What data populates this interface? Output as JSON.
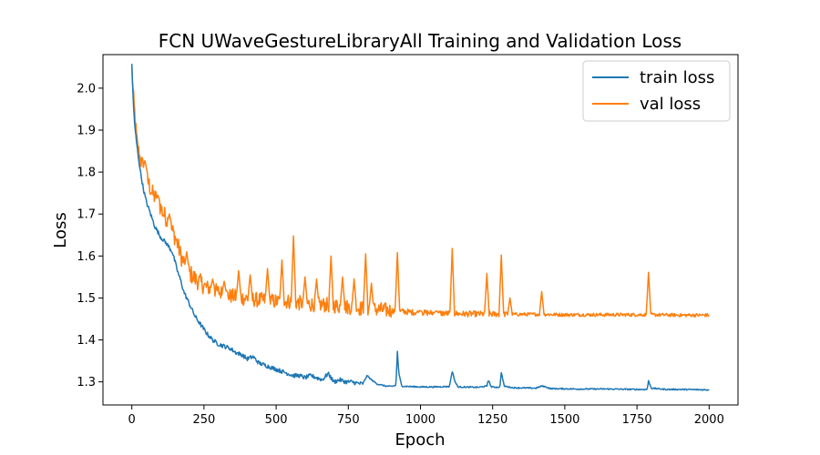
{
  "chart_data": {
    "type": "line",
    "title": "FCN UWaveGestureLibraryAll Training and Validation Loss",
    "xlabel": "Epoch",
    "ylabel": "Loss",
    "xlim": [
      -100,
      2100
    ],
    "ylim": [
      1.245,
      2.08
    ],
    "xticks": [
      0,
      250,
      500,
      750,
      1000,
      1250,
      1500,
      1750,
      2000
    ],
    "yticks": [
      1.3,
      1.4,
      1.5,
      1.6,
      1.7,
      1.8,
      1.9,
      2.0
    ],
    "ytick_labels": [
      "1.3",
      "1.4",
      "1.5",
      "1.6",
      "1.7",
      "1.8",
      "1.9",
      "2.0"
    ],
    "grid": false,
    "legend_position": "top-right",
    "colors": {
      "train": "#1f77b4",
      "val": "#ff7f0e"
    },
    "series": [
      {
        "name": "train loss",
        "color": "#1f77b4",
        "points": [
          [
            0,
            2.055
          ],
          [
            5,
            1.97
          ],
          [
            10,
            1.91
          ],
          [
            20,
            1.85
          ],
          [
            30,
            1.8
          ],
          [
            40,
            1.76
          ],
          [
            50,
            1.73
          ],
          [
            60,
            1.71
          ],
          [
            70,
            1.69
          ],
          [
            80,
            1.67
          ],
          [
            100,
            1.645
          ],
          [
            120,
            1.63
          ],
          [
            140,
            1.61
          ],
          [
            150,
            1.585
          ],
          [
            160,
            1.56
          ],
          [
            170,
            1.54
          ],
          [
            180,
            1.515
          ],
          [
            190,
            1.5
          ],
          [
            200,
            1.485
          ],
          [
            210,
            1.47
          ],
          [
            220,
            1.455
          ],
          [
            240,
            1.435
          ],
          [
            260,
            1.415
          ],
          [
            280,
            1.4
          ],
          [
            300,
            1.39
          ],
          [
            320,
            1.385
          ],
          [
            340,
            1.38
          ],
          [
            360,
            1.37
          ],
          [
            380,
            1.365
          ],
          [
            400,
            1.355
          ],
          [
            420,
            1.36
          ],
          [
            440,
            1.345
          ],
          [
            460,
            1.34
          ],
          [
            480,
            1.335
          ],
          [
            500,
            1.33
          ],
          [
            520,
            1.325
          ],
          [
            540,
            1.32
          ],
          [
            560,
            1.315
          ],
          [
            580,
            1.315
          ],
          [
            600,
            1.31
          ],
          [
            620,
            1.315
          ],
          [
            640,
            1.31
          ],
          [
            660,
            1.305
          ],
          [
            680,
            1.32
          ],
          [
            700,
            1.3
          ],
          [
            720,
            1.305
          ],
          [
            740,
            1.3
          ],
          [
            760,
            1.3
          ],
          [
            780,
            1.297
          ],
          [
            800,
            1.295
          ],
          [
            815,
            1.315
          ],
          [
            830,
            1.305
          ],
          [
            850,
            1.295
          ],
          [
            880,
            1.29
          ],
          [
            900,
            1.289
          ],
          [
            915,
            1.292
          ],
          [
            920,
            1.373
          ],
          [
            925,
            1.32
          ],
          [
            935,
            1.29
          ],
          [
            960,
            1.289
          ],
          [
            1000,
            1.288
          ],
          [
            1050,
            1.288
          ],
          [
            1100,
            1.289
          ],
          [
            1110,
            1.325
          ],
          [
            1120,
            1.3
          ],
          [
            1130,
            1.288
          ],
          [
            1200,
            1.287
          ],
          [
            1230,
            1.29
          ],
          [
            1235,
            1.305
          ],
          [
            1245,
            1.288
          ],
          [
            1275,
            1.287
          ],
          [
            1280,
            1.323
          ],
          [
            1290,
            1.29
          ],
          [
            1320,
            1.286
          ],
          [
            1400,
            1.285
          ],
          [
            1420,
            1.29
          ],
          [
            1430,
            1.289
          ],
          [
            1450,
            1.284
          ],
          [
            1550,
            1.283
          ],
          [
            1650,
            1.283
          ],
          [
            1750,
            1.282
          ],
          [
            1785,
            1.282
          ],
          [
            1790,
            1.302
          ],
          [
            1800,
            1.285
          ],
          [
            1850,
            1.282
          ],
          [
            1900,
            1.282
          ],
          [
            2000,
            1.281
          ]
        ]
      },
      {
        "name": "val loss",
        "color": "#ff7f0e",
        "points": [
          [
            0,
            2.05
          ],
          [
            5,
            1.98
          ],
          [
            10,
            1.94
          ],
          [
            15,
            1.89
          ],
          [
            20,
            1.86
          ],
          [
            30,
            1.83
          ],
          [
            40,
            1.81
          ],
          [
            50,
            1.79
          ],
          [
            60,
            1.77
          ],
          [
            70,
            1.75
          ],
          [
            80,
            1.74
          ],
          [
            90,
            1.73
          ],
          [
            100,
            1.715
          ],
          [
            110,
            1.7
          ],
          [
            120,
            1.69
          ],
          [
            130,
            1.675
          ],
          [
            140,
            1.66
          ],
          [
            150,
            1.645
          ],
          [
            160,
            1.625
          ],
          [
            170,
            1.6
          ],
          [
            180,
            1.585
          ],
          [
            190,
            1.57
          ],
          [
            200,
            1.56
          ],
          [
            220,
            1.545
          ],
          [
            240,
            1.535
          ],
          [
            260,
            1.525
          ],
          [
            280,
            1.52
          ],
          [
            300,
            1.515
          ],
          [
            320,
            1.51
          ],
          [
            340,
            1.505
          ],
          [
            360,
            1.503
          ],
          [
            380,
            1.5
          ],
          [
            400,
            1.499
          ],
          [
            420,
            1.497
          ],
          [
            440,
            1.495
          ],
          [
            460,
            1.495
          ],
          [
            480,
            1.493
          ],
          [
            500,
            1.492
          ],
          [
            520,
            1.49
          ],
          [
            540,
            1.492
          ],
          [
            560,
            1.49
          ],
          [
            580,
            1.488
          ],
          [
            600,
            1.487
          ],
          [
            620,
            1.485
          ],
          [
            640,
            1.485
          ],
          [
            660,
            1.484
          ],
          [
            680,
            1.483
          ],
          [
            700,
            1.482
          ],
          [
            720,
            1.48
          ],
          [
            740,
            1.479
          ],
          [
            760,
            1.478
          ],
          [
            780,
            1.476
          ],
          [
            800,
            1.475
          ],
          [
            820,
            1.474
          ],
          [
            840,
            1.473
          ],
          [
            860,
            1.472
          ],
          [
            880,
            1.471
          ],
          [
            900,
            1.47
          ],
          [
            950,
            1.467
          ],
          [
            1000,
            1.465
          ],
          [
            1050,
            1.464
          ],
          [
            1100,
            1.463
          ],
          [
            1150,
            1.462
          ],
          [
            1200,
            1.462
          ],
          [
            1300,
            1.461
          ],
          [
            1400,
            1.461
          ],
          [
            1500,
            1.46
          ],
          [
            1600,
            1.46
          ],
          [
            1700,
            1.46
          ],
          [
            1800,
            1.46
          ],
          [
            1900,
            1.459
          ],
          [
            2000,
            1.459
          ]
        ],
        "spikes": [
          [
            45,
            1.83
          ],
          [
            90,
            1.745
          ],
          [
            130,
            1.7
          ],
          [
            190,
            1.61
          ],
          [
            280,
            1.545
          ],
          [
            320,
            1.54
          ],
          [
            370,
            1.565
          ],
          [
            410,
            1.555
          ],
          [
            470,
            1.57
          ],
          [
            520,
            1.59
          ],
          [
            560,
            1.648
          ],
          [
            600,
            1.55
          ],
          [
            640,
            1.545
          ],
          [
            690,
            1.6
          ],
          [
            730,
            1.55
          ],
          [
            770,
            1.545
          ],
          [
            810,
            1.605
          ],
          [
            830,
            1.535
          ],
          [
            920,
            1.608
          ],
          [
            1000,
            1.47
          ],
          [
            1055,
            1.47
          ],
          [
            1110,
            1.618
          ],
          [
            1230,
            1.558
          ],
          [
            1280,
            1.602
          ],
          [
            1310,
            1.5
          ],
          [
            1420,
            1.515
          ],
          [
            1790,
            1.561
          ]
        ]
      }
    ]
  }
}
